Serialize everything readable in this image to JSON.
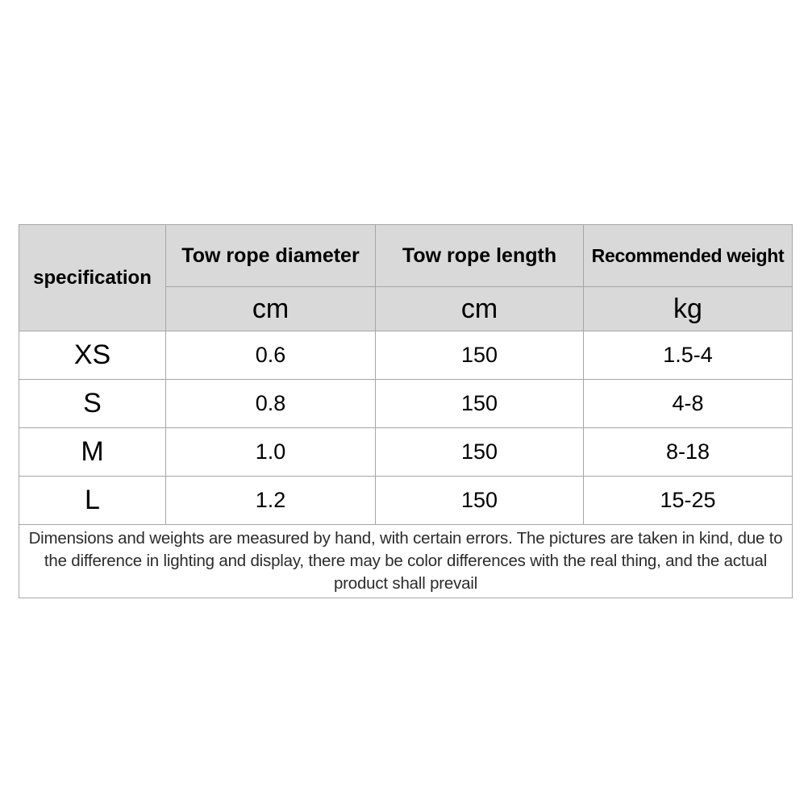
{
  "table": {
    "columns": [
      {
        "label": "specification",
        "unit": ""
      },
      {
        "label": "Tow rope diameter",
        "unit": "cm"
      },
      {
        "label": "Tow rope length",
        "unit": "cm"
      },
      {
        "label": "Recommended weight",
        "unit": "kg"
      }
    ],
    "rows": [
      {
        "size": "XS",
        "diameter_cm": "0.6",
        "length_cm": "150",
        "weight_kg": "1.5-4"
      },
      {
        "size": "S",
        "diameter_cm": "0.8",
        "length_cm": "150",
        "weight_kg": "4-8"
      },
      {
        "size": "M",
        "diameter_cm": "1.0",
        "length_cm": "150",
        "weight_kg": "8-18"
      },
      {
        "size": "L",
        "diameter_cm": "1.2",
        "length_cm": "150",
        "weight_kg": "15-25"
      }
    ],
    "footnote": "Dimensions and weights are measured by hand, with certain errors. The pictures are taken in kind, due to the difference in lighting and display, there may be color differences with the real thing, and the actual product shall prevail"
  },
  "colors": {
    "header_bg": "#d9d9d9",
    "border": "#a6a6a6",
    "text": "#000000",
    "footnote_text": "#2b2b2b",
    "background": "#ffffff"
  }
}
